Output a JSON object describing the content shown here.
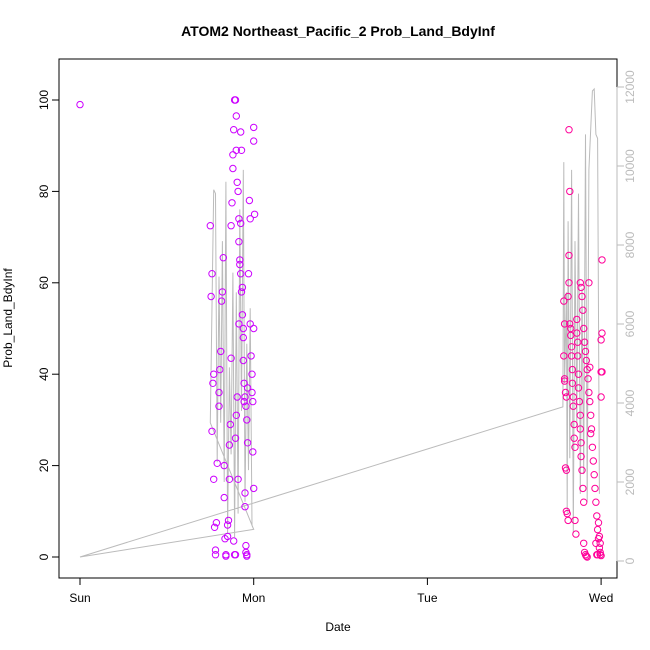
{
  "chart_data": {
    "type": "scatter",
    "title": "ATOM2 Northeast_Pacific_2 Prob_Land_BdyInf",
    "xlabel": "Date",
    "ylabel": "Prob_Land_BdyInf",
    "x_ticks": [
      "Sun",
      "Mon",
      "Tue",
      "Wed"
    ],
    "xlim": [
      0,
      3.15
    ],
    "ylim": [
      0,
      100
    ],
    "y_ticks": [
      0,
      20,
      40,
      60,
      80,
      100
    ],
    "y2_ticks": [
      0,
      2000,
      4000,
      6000,
      8000,
      10000,
      12000
    ],
    "y2lim": [
      0,
      12000
    ],
    "grid": false,
    "x_unit": "days after Sun 00:00",
    "colors": {
      "points_monday_cluster": "#cc00ff",
      "points_wednesday_cluster": "#ff0099",
      "secondary_line": "#bbbbbb",
      "secondary_axis": "#bbbbbb",
      "axes": "#000000"
    },
    "series": [
      {
        "name": "",
        "kind": "points",
        "color": "#cc00ff",
        "points": [
          [
            0.0,
            99
          ],
          [
            0.75,
            72.5
          ],
          [
            0.76,
            62
          ],
          [
            0.755,
            57
          ],
          [
            0.77,
            40
          ],
          [
            0.765,
            38
          ],
          [
            0.76,
            27.5
          ],
          [
            0.77,
            17
          ],
          [
            0.775,
            6.5
          ],
          [
            0.78,
            1.5
          ],
          [
            0.78,
            0.5
          ],
          [
            0.785,
            7.5
          ],
          [
            0.79,
            20.5
          ],
          [
            0.8,
            36
          ],
          [
            0.8,
            33
          ],
          [
            0.805,
            41
          ],
          [
            0.81,
            45
          ],
          [
            0.815,
            56
          ],
          [
            0.82,
            58
          ],
          [
            0.825,
            65.5
          ],
          [
            0.83,
            13
          ],
          [
            0.83,
            20
          ],
          [
            0.835,
            4
          ],
          [
            0.84,
            0.5
          ],
          [
            0.84,
            0.2
          ],
          [
            0.85,
            7
          ],
          [
            0.85,
            4.5
          ],
          [
            0.855,
            8
          ],
          [
            0.86,
            17
          ],
          [
            0.86,
            24.5
          ],
          [
            0.865,
            29
          ],
          [
            0.87,
            43.5
          ],
          [
            0.87,
            72.5
          ],
          [
            0.875,
            77.5
          ],
          [
            0.88,
            85
          ],
          [
            0.88,
            88
          ],
          [
            0.885,
            93.5
          ],
          [
            0.89,
            100
          ],
          [
            0.895,
            100
          ],
          [
            0.9,
            96.5
          ],
          [
            0.9,
            89
          ],
          [
            0.905,
            82
          ],
          [
            0.91,
            80
          ],
          [
            0.915,
            74
          ],
          [
            0.915,
            69
          ],
          [
            0.92,
            65
          ],
          [
            0.925,
            62
          ],
          [
            0.93,
            58
          ],
          [
            0.935,
            53
          ],
          [
            0.94,
            48
          ],
          [
            0.94,
            43
          ],
          [
            0.945,
            38
          ],
          [
            0.95,
            35
          ],
          [
            0.955,
            33
          ],
          [
            0.96,
            30
          ],
          [
            0.965,
            25
          ],
          [
            0.885,
            3.5
          ],
          [
            0.89,
            0.5
          ],
          [
            0.895,
            0.5
          ],
          [
            0.895,
            26
          ],
          [
            0.9,
            31
          ],
          [
            0.905,
            35
          ],
          [
            0.91,
            17
          ],
          [
            0.915,
            51
          ],
          [
            0.92,
            64
          ],
          [
            0.925,
            73
          ],
          [
            0.925,
            93
          ],
          [
            0.93,
            89
          ],
          [
            0.935,
            59
          ],
          [
            0.94,
            50
          ],
          [
            0.945,
            34
          ],
          [
            0.95,
            14
          ],
          [
            0.95,
            11
          ],
          [
            0.955,
            2.5
          ],
          [
            0.955,
            1
          ],
          [
            0.96,
            0.5
          ],
          [
            0.96,
            0.2
          ],
          [
            0.965,
            37
          ],
          [
            0.97,
            62
          ],
          [
            0.975,
            78
          ],
          [
            0.98,
            74
          ],
          [
            0.98,
            51
          ],
          [
            0.985,
            44
          ],
          [
            0.99,
            40
          ],
          [
            0.99,
            36
          ],
          [
            0.995,
            34
          ],
          [
            0.995,
            23
          ],
          [
            1.0,
            15
          ],
          [
            1.0,
            50
          ],
          [
            1.0,
            94
          ],
          [
            1.0,
            91
          ],
          [
            1.005,
            75
          ]
        ]
      },
      {
        "name": "",
        "kind": "points",
        "color": "#ff0099",
        "points": [
          [
            2.785,
            56
          ],
          [
            2.79,
            51
          ],
          [
            2.785,
            44
          ],
          [
            2.79,
            39
          ],
          [
            2.79,
            38.5
          ],
          [
            2.795,
            36
          ],
          [
            2.8,
            35
          ],
          [
            2.8,
            19
          ],
          [
            2.795,
            19.5
          ],
          [
            2.8,
            10
          ],
          [
            2.805,
            9.5
          ],
          [
            2.81,
            8
          ],
          [
            2.81,
            57
          ],
          [
            2.815,
            60
          ],
          [
            2.815,
            66
          ],
          [
            2.82,
            80
          ],
          [
            2.815,
            93.5
          ],
          [
            2.82,
            51
          ],
          [
            2.825,
            50
          ],
          [
            2.825,
            48.5
          ],
          [
            2.83,
            46
          ],
          [
            2.83,
            44
          ],
          [
            2.835,
            41
          ],
          [
            2.835,
            38
          ],
          [
            2.84,
            35
          ],
          [
            2.84,
            33
          ],
          [
            2.845,
            29
          ],
          [
            2.845,
            26
          ],
          [
            2.85,
            24
          ],
          [
            2.85,
            8
          ],
          [
            2.855,
            5
          ],
          [
            2.86,
            52
          ],
          [
            2.86,
            49
          ],
          [
            2.865,
            47
          ],
          [
            2.865,
            44
          ],
          [
            2.87,
            40
          ],
          [
            2.87,
            37
          ],
          [
            2.875,
            34
          ],
          [
            2.88,
            31
          ],
          [
            2.88,
            28
          ],
          [
            2.885,
            25
          ],
          [
            2.885,
            22
          ],
          [
            2.89,
            19
          ],
          [
            2.895,
            15
          ],
          [
            2.9,
            12
          ],
          [
            2.9,
            3
          ],
          [
            2.905,
            1
          ],
          [
            2.91,
            0.5
          ],
          [
            2.915,
            0.2
          ],
          [
            2.92,
            0
          ],
          [
            2.88,
            60
          ],
          [
            2.885,
            59
          ],
          [
            2.89,
            57
          ],
          [
            2.895,
            54
          ],
          [
            2.9,
            50
          ],
          [
            2.905,
            47
          ],
          [
            2.91,
            45
          ],
          [
            2.915,
            43
          ],
          [
            2.92,
            41
          ],
          [
            2.925,
            39
          ],
          [
            2.93,
            36
          ],
          [
            2.935,
            34
          ],
          [
            2.94,
            31
          ],
          [
            2.945,
            28
          ],
          [
            2.95,
            24
          ],
          [
            2.955,
            21
          ],
          [
            2.96,
            18
          ],
          [
            2.965,
            15
          ],
          [
            2.97,
            12
          ],
          [
            2.975,
            9
          ],
          [
            2.98,
            6
          ],
          [
            2.985,
            4
          ],
          [
            2.99,
            2
          ],
          [
            2.995,
            1
          ],
          [
            2.995,
            0.5
          ],
          [
            3.0,
            0.3
          ],
          [
            2.97,
            3
          ],
          [
            2.975,
            0.5
          ],
          [
            2.98,
            0.5
          ],
          [
            2.985,
            7.5
          ],
          [
            2.99,
            4.5
          ],
          [
            2.995,
            3
          ],
          [
            3.0,
            35
          ],
          [
            3.0,
            40.5
          ],
          [
            3.005,
            40.5
          ],
          [
            3.0,
            47.5
          ],
          [
            3.005,
            49
          ],
          [
            3.005,
            65
          ],
          [
            2.93,
            60
          ],
          [
            2.935,
            41.5
          ],
          [
            2.94,
            27
          ]
        ]
      },
      {
        "name": "",
        "kind": "line",
        "axis": "right",
        "color": "#bbbbbb",
        "points": [
          [
            0.0,
            100
          ],
          [
            1.0,
            800
          ],
          [
            0.75,
            3500
          ],
          [
            0.77,
            9400
          ],
          [
            0.78,
            9300
          ],
          [
            0.79,
            2500
          ],
          [
            0.8,
            7200
          ],
          [
            0.81,
            3500
          ],
          [
            0.82,
            8100
          ],
          [
            0.83,
            2000
          ],
          [
            0.84,
            9600
          ],
          [
            0.85,
            700
          ],
          [
            0.86,
            4900
          ],
          [
            0.87,
            2700
          ],
          [
            0.88,
            7300
          ],
          [
            0.89,
            600
          ],
          [
            0.9,
            6800
          ],
          [
            0.91,
            1200
          ],
          [
            0.92,
            8900
          ],
          [
            0.93,
            3800
          ],
          [
            0.94,
            9900
          ],
          [
            0.95,
            1500
          ],
          [
            0.96,
            5500
          ],
          [
            0.97,
            2300
          ],
          [
            0.98,
            6400
          ],
          [
            0.99,
            900
          ],
          [
            1.0,
            800
          ],
          [
            0.0,
            100
          ],
          [
            2.78,
            3900
          ],
          [
            2.785,
            10100
          ],
          [
            2.79,
            4500
          ],
          [
            2.8,
            6800
          ],
          [
            2.805,
            1200
          ],
          [
            2.81,
            8600
          ],
          [
            2.82,
            2600
          ],
          [
            2.83,
            9900
          ],
          [
            2.84,
            700
          ],
          [
            2.85,
            8100
          ],
          [
            2.86,
            3400
          ],
          [
            2.87,
            9300
          ],
          [
            2.88,
            1700
          ],
          [
            2.89,
            6900
          ],
          [
            2.9,
            2200
          ],
          [
            2.91,
            10800
          ],
          [
            2.92,
            1500
          ],
          [
            2.93,
            9900
          ],
          [
            2.95,
            11900
          ],
          [
            2.96,
            11950
          ],
          [
            2.97,
            10800
          ],
          [
            2.98,
            10700
          ],
          [
            2.99,
            1700
          ]
        ]
      }
    ]
  }
}
